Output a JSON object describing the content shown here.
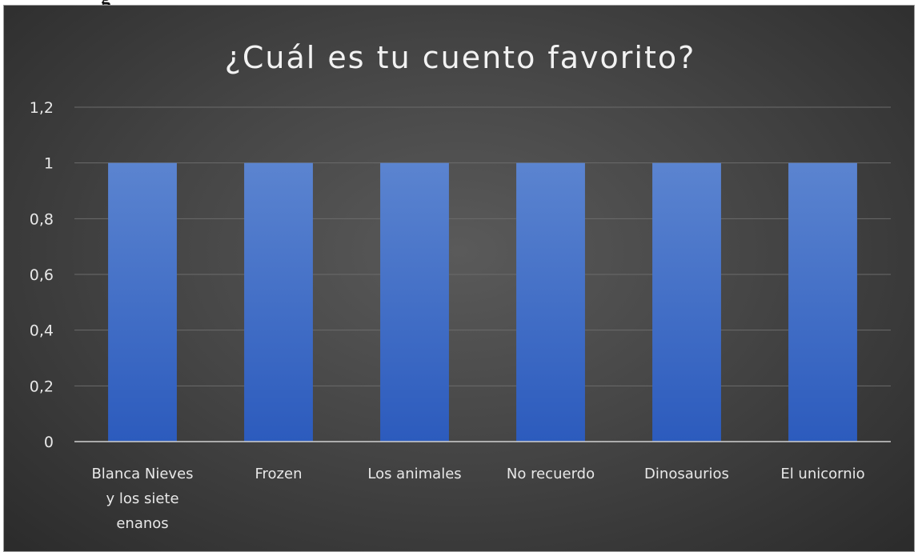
{
  "page": {
    "cropped_heading": "g"
  },
  "chart_data": {
    "type": "bar",
    "title": "¿Cuál es tu cuento favorito?",
    "xlabel": "",
    "ylabel": "",
    "categories": [
      "Blanca Nieves y los siete enanos",
      "Frozen",
      "Los animales",
      "No recuerdo",
      "Dinosaurios",
      "El unicornio"
    ],
    "category_lines": [
      [
        "Blanca Nieves",
        "y los siete",
        "enanos"
      ],
      [
        "Frozen"
      ],
      [
        "Los animales"
      ],
      [
        "No recuerdo"
      ],
      [
        "Dinosaurios"
      ],
      [
        "El unicornio"
      ]
    ],
    "values": [
      1,
      1,
      1,
      1,
      1,
      1
    ],
    "ylim": [
      0,
      1.2
    ],
    "yticks": [
      0,
      0.2,
      0.4,
      0.6,
      0.8,
      1,
      1.2
    ],
    "ytick_labels": [
      "0",
      "0,2",
      "0,4",
      "0,6",
      "0,8",
      "1",
      "1,2"
    ],
    "grid": true,
    "legend": "none",
    "colors": {
      "bar_top": "#5b84d0",
      "bar_bottom": "#2c5bbd",
      "background_center": "#5a5a5a",
      "background_edge": "#2b2b2b",
      "gridline": "#6b6b6b",
      "text": "#e8e8e8"
    }
  }
}
